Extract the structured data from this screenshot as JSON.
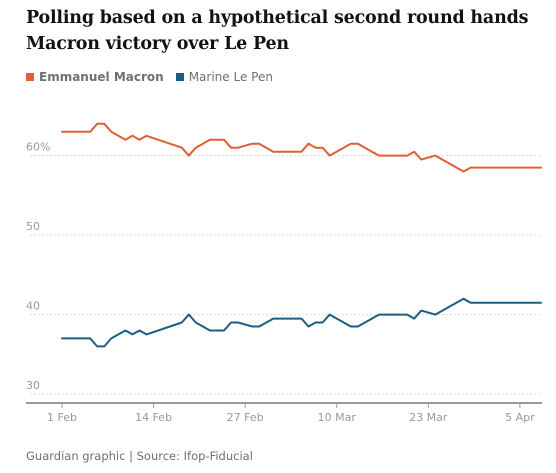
{
  "title": "Polling based on a hypothetical second round hands Macron victory over Le Pen",
  "footer": "Guardian graphic | Source: Ifop-Fiducial",
  "colors": {
    "macron": "#e05e34",
    "lepen": "#1b5e83"
  },
  "chart_data": {
    "type": "line",
    "x_ticks": [
      "1 Feb",
      "14 Feb",
      "27 Feb",
      "10 Mar",
      "23 Mar",
      "5 Apr"
    ],
    "y_ticks": [
      "30",
      "40",
      "50",
      "60%"
    ],
    "y_tick_values": [
      30,
      40,
      50,
      60
    ],
    "ylim": [
      29,
      67
    ],
    "xlim": [
      0,
      70
    ],
    "grid": true,
    "legend": "top-left",
    "series": [
      {
        "name": "Emmanuel Macron",
        "x": [
          0,
          4,
          5,
          6,
          7,
          9,
          10,
          11,
          12,
          17,
          18,
          19,
          20,
          21,
          23,
          24,
          25,
          27,
          28,
          30,
          34,
          35,
          36,
          37,
          38,
          41,
          42,
          44,
          45,
          46,
          48,
          49,
          50,
          51,
          53,
          57,
          58,
          59,
          60,
          61,
          62,
          63,
          64,
          66,
          67,
          68
        ],
        "y": [
          63,
          63,
          64,
          64,
          63,
          62,
          62.5,
          62,
          62.5,
          61,
          60,
          61,
          61.5,
          62,
          62,
          61,
          61,
          61.5,
          61.5,
          60.5,
          60.5,
          61.5,
          61,
          61,
          60,
          61.5,
          61.5,
          60.5,
          60,
          60,
          60,
          60,
          60.5,
          59.5,
          60,
          58,
          58.5,
          58.5,
          58.5,
          58.5,
          58.5,
          58.5,
          58.5,
          58.5,
          58.5,
          58.5
        ]
      },
      {
        "name": "Marine Le Pen",
        "x": [
          0,
          4,
          5,
          6,
          7,
          9,
          10,
          11,
          12,
          17,
          18,
          19,
          20,
          21,
          23,
          24,
          25,
          27,
          28,
          30,
          34,
          35,
          36,
          37,
          38,
          41,
          42,
          44,
          45,
          46,
          48,
          49,
          50,
          51,
          53,
          57,
          58,
          59,
          60,
          61,
          62,
          63,
          64,
          66,
          67,
          68
        ],
        "y": [
          37,
          37,
          36,
          36,
          37,
          38,
          37.5,
          38,
          37.5,
          39,
          40,
          39,
          38.5,
          38,
          38,
          39,
          39,
          38.5,
          38.5,
          39.5,
          39.5,
          38.5,
          39,
          39,
          40,
          38.5,
          38.5,
          39.5,
          40,
          40,
          40,
          40,
          39.5,
          40.5,
          40,
          42,
          41.5,
          41.5,
          41.5,
          41.5,
          41.5,
          41.5,
          41.5,
          41.5,
          41.5,
          41.5
        ]
      }
    ]
  }
}
